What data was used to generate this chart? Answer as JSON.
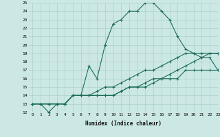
{
  "xlabel": "Humidex (Indice chaleur)",
  "bg_color": "#cce8e4",
  "line_color": "#1a6b5a",
  "grid_color": "#aad0cc",
  "ylim": [
    12,
    25
  ],
  "xlim": [
    -0.5,
    23
  ],
  "yticks": [
    12,
    13,
    14,
    15,
    16,
    17,
    18,
    19,
    20,
    21,
    22,
    23,
    24,
    25
  ],
  "xticks": [
    0,
    1,
    2,
    3,
    4,
    5,
    6,
    7,
    8,
    9,
    10,
    11,
    12,
    13,
    14,
    15,
    16,
    17,
    18,
    19,
    20,
    21,
    22,
    23
  ],
  "series": [
    {
      "x": [
        0,
        1,
        2,
        3,
        4,
        5,
        6,
        7,
        8,
        9,
        10,
        11,
        12,
        13,
        14,
        15,
        16,
        17,
        18,
        19,
        20,
        21,
        22,
        23
      ],
      "y": [
        13,
        13,
        12,
        13,
        13,
        14,
        14,
        17.5,
        16,
        20,
        22.5,
        23,
        24,
        24,
        25,
        25,
        24,
        23,
        21,
        19.5,
        19,
        18.5,
        18.5,
        17
      ]
    },
    {
      "x": [
        0,
        1,
        2,
        3,
        4,
        5,
        6,
        7,
        8,
        9,
        10,
        11,
        12,
        13,
        14,
        15,
        16,
        17,
        18,
        19,
        20,
        21,
        22,
        23
      ],
      "y": [
        13,
        13,
        13,
        13,
        13,
        14,
        14,
        14,
        14,
        14,
        14,
        14.5,
        15,
        15,
        15,
        15.5,
        16,
        16,
        16,
        17,
        17,
        17,
        17,
        17
      ]
    },
    {
      "x": [
        0,
        1,
        2,
        3,
        4,
        5,
        6,
        7,
        8,
        9,
        10,
        11,
        12,
        13,
        14,
        15,
        16,
        17,
        18,
        19,
        20,
        21,
        22,
        23
      ],
      "y": [
        13,
        13,
        13,
        13,
        13,
        14,
        14,
        14,
        14,
        14,
        14,
        14.5,
        15,
        15,
        15.5,
        16,
        16,
        16.5,
        17,
        17.5,
        18,
        18.5,
        19,
        19
      ]
    },
    {
      "x": [
        0,
        1,
        2,
        3,
        4,
        5,
        6,
        7,
        8,
        9,
        10,
        11,
        12,
        13,
        14,
        15,
        16,
        17,
        18,
        19,
        20,
        21,
        22,
        23
      ],
      "y": [
        13,
        13,
        13,
        13,
        13,
        14,
        14,
        14,
        14.5,
        15,
        15,
        15.5,
        16,
        16.5,
        17,
        17,
        17.5,
        18,
        18.5,
        19,
        19,
        19,
        19,
        19
      ]
    }
  ]
}
